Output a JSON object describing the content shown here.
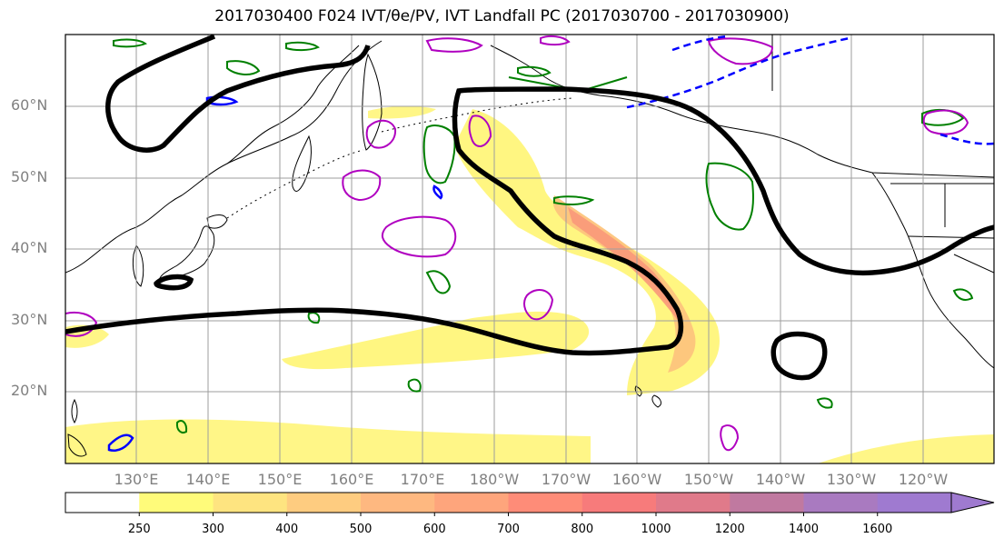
{
  "title": "2017030400 F024 IVT/θe/PV, IVT Landfall PC (2017030700 - 2017030900)",
  "lat_labels": [
    "60°N",
    "50°N",
    "40°N",
    "30°N",
    "20°N"
  ],
  "lon_labels": [
    "130°E",
    "140°E",
    "150°E",
    "160°E",
    "170°E",
    "180°W",
    "170°W",
    "160°W",
    "150°W",
    "140°W",
    "130°W",
    "120°W"
  ],
  "colorbar": {
    "ticks": [
      "250",
      "300",
      "400",
      "500",
      "600",
      "700",
      "800",
      "1000",
      "1200",
      "1400",
      "1600"
    ],
    "colors": [
      "#ffffff",
      "#fffb7a",
      "#fee480",
      "#fecc80",
      "#feb880",
      "#fea57c",
      "#fe8c78",
      "#f77b7b",
      "#e07a8a",
      "#c079a0",
      "#a97ac0",
      "#9f7ad0"
    ]
  },
  "colors": {
    "ivt_light": "#fff57a",
    "ivt_mid": "#fdc47c",
    "ivt_strong": "#f9987a",
    "pc_contour": "#000000",
    "pv_positive": "#b000c0",
    "pv_negative": "#0000ff",
    "theta_e": "#008000"
  }
}
